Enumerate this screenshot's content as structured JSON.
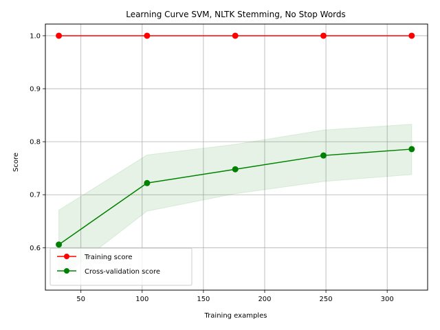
{
  "chart_data": {
    "type": "line",
    "title": "Learning Curve SVM, NLTK Stemming, No Stop Words",
    "xlabel": "Training examples",
    "ylabel": "Score",
    "xlim": [
      21,
      333
    ],
    "ylim": [
      0.52,
      1.022
    ],
    "xticks": [
      50,
      100,
      150,
      200,
      250,
      300
    ],
    "yticks": [
      0.6,
      0.7,
      0.8,
      0.9,
      1.0
    ],
    "xtick_labels": [
      "50",
      "100",
      "150",
      "200",
      "250",
      "300"
    ],
    "ytick_labels": [
      "0.6",
      "0.7",
      "0.8",
      "0.9",
      "1.0"
    ],
    "grid": true,
    "legend": "lower-left",
    "x": [
      32,
      104,
      176,
      248,
      320
    ],
    "series": [
      {
        "name": "Training score",
        "color": "#ff0000",
        "values": [
          1.0,
          1.0,
          1.0,
          1.0,
          1.0
        ],
        "band_lower": [
          1.0,
          1.0,
          1.0,
          1.0,
          1.0
        ],
        "band_upper": [
          1.0,
          1.0,
          1.0,
          1.0,
          1.0
        ]
      },
      {
        "name": "Cross-validation score",
        "color": "#008000",
        "values": [
          0.606,
          0.722,
          0.748,
          0.774,
          0.786
        ],
        "band_lower": [
          0.541,
          0.669,
          0.702,
          0.725,
          0.738
        ],
        "band_upper": [
          0.671,
          0.775,
          0.795,
          0.822,
          0.833
        ]
      }
    ]
  }
}
